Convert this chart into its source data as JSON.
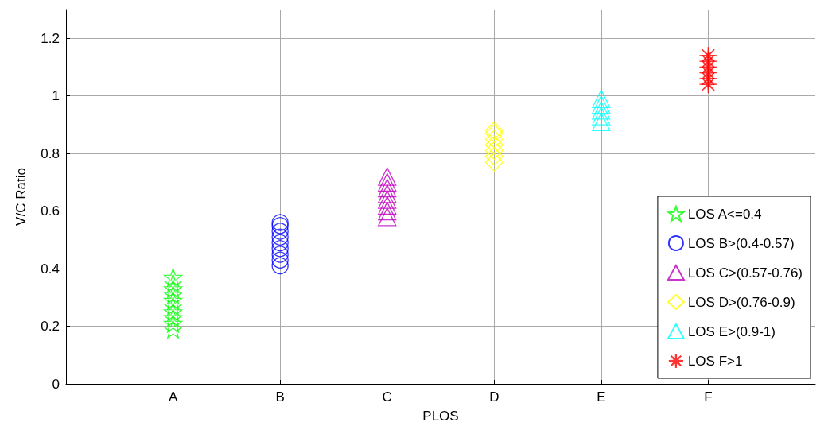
{
  "chart_data": {
    "type": "scatter",
    "xlabel": "PLOS",
    "ylabel": "V/C Ratio",
    "categories": [
      "A",
      "B",
      "C",
      "D",
      "E",
      "F"
    ],
    "ylim": [
      0,
      1.3
    ],
    "yticks": [
      0,
      0.2,
      0.4,
      0.6,
      0.8,
      1,
      1.2
    ],
    "grid": true,
    "legend": "bottom right",
    "series": [
      {
        "name": "LOS A<=0.4",
        "color": "#00ff00",
        "marker": "star",
        "x": [
          "A",
          "A",
          "A",
          "A",
          "A",
          "A",
          "A",
          "A",
          "A",
          "A"
        ],
        "values": [
          0.19,
          0.21,
          0.23,
          0.25,
          0.27,
          0.29,
          0.31,
          0.33,
          0.35,
          0.37
        ]
      },
      {
        "name": "LOS B>(0.4-0.57)",
        "color": "#0000ff",
        "marker": "circle",
        "x": [
          "B",
          "B",
          "B",
          "B",
          "B",
          "B",
          "B",
          "B",
          "B"
        ],
        "values": [
          0.41,
          0.43,
          0.45,
          0.47,
          0.49,
          0.51,
          0.53,
          0.55,
          0.56
        ]
      },
      {
        "name": "LOS C>(0.57-0.76)",
        "color": "#bf00bf",
        "marker": "triangle",
        "x": [
          "C",
          "C",
          "C",
          "C",
          "C",
          "C",
          "C",
          "C"
        ],
        "values": [
          0.58,
          0.6,
          0.62,
          0.64,
          0.66,
          0.68,
          0.7,
          0.72
        ]
      },
      {
        "name": "LOS D>(0.76-0.9)",
        "color": "#ffff00",
        "marker": "diamond",
        "x": [
          "D",
          "D",
          "D",
          "D",
          "D",
          "D",
          "D"
        ],
        "values": [
          0.77,
          0.79,
          0.81,
          0.83,
          0.85,
          0.87,
          0.88
        ]
      },
      {
        "name": "LOS E>(0.9-1)",
        "color": "#00ffff",
        "marker": "triangle",
        "x": [
          "E",
          "E",
          "E",
          "E",
          "E"
        ],
        "values": [
          0.91,
          0.93,
          0.95,
          0.97,
          0.99
        ]
      },
      {
        "name": "LOS F>1",
        "color": "#ff0000",
        "marker": "cross",
        "x": [
          "F",
          "F",
          "F",
          "F",
          "F",
          "F"
        ],
        "values": [
          1.04,
          1.06,
          1.08,
          1.1,
          1.12,
          1.14
        ]
      }
    ]
  }
}
